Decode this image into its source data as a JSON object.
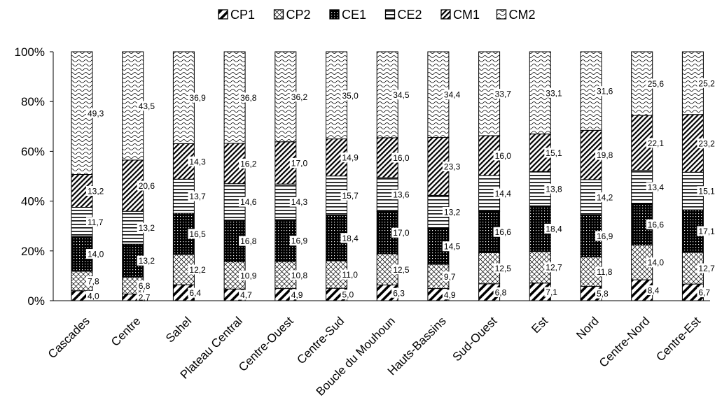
{
  "chart_data": {
    "type": "bar",
    "stacked": true,
    "percent_stacked": true,
    "categories": [
      "Cascades",
      "Centre",
      "Sahel",
      "Plateau Central",
      "Centre-Ouest",
      "Centre-Sud",
      "Boucle du Mouhoun",
      "Hauts-Bassins",
      "Sud-Ouest",
      "Est",
      "Nord",
      "Centre-Nord",
      "Centre-Est"
    ],
    "series": [
      {
        "name": "CP1",
        "pattern": "diagonal-wide",
        "values": [
          4.0,
          2.7,
          6.4,
          4.7,
          4.9,
          5.0,
          6.3,
          4.9,
          6.8,
          7.1,
          5.8,
          8.4,
          6.7
        ],
        "labels": [
          "4,0",
          "2,7",
          "6,4",
          "4,7",
          "4,9",
          "5,0",
          "6,3",
          "4,9",
          "6,8",
          "7,1",
          "5,8",
          "8,4",
          "6,7"
        ]
      },
      {
        "name": "CP2",
        "pattern": "crosshatch",
        "values": [
          7.8,
          6.8,
          12.2,
          10.9,
          10.8,
          11.0,
          12.5,
          9.7,
          12.5,
          12.7,
          11.8,
          14.0,
          12.7
        ],
        "labels": [
          "7,8",
          "6,8",
          "12,2",
          "10,9",
          "10,8",
          "11,0",
          "12,5",
          "9,7",
          "12,5",
          "12,7",
          "11,8",
          "14,0",
          "12,7"
        ]
      },
      {
        "name": "CE1",
        "pattern": "dots-dark",
        "values": [
          14.0,
          13.2,
          16.5,
          16.8,
          16.9,
          18.4,
          17.0,
          14.5,
          16.6,
          18.4,
          16.9,
          16.6,
          17.1
        ],
        "labels": [
          "14,0",
          "13,2",
          "16,5",
          "16,8",
          "16,9",
          "18,4",
          "17,0",
          "14,5",
          "16,6",
          "18,4",
          "16,9",
          "16,6",
          "17,1"
        ]
      },
      {
        "name": "CE2",
        "pattern": "horizontal-lines",
        "values": [
          11.7,
          13.2,
          13.7,
          14.6,
          14.3,
          15.7,
          13.6,
          13.2,
          14.4,
          13.8,
          14.2,
          13.4,
          15.1
        ],
        "labels": [
          "11,7",
          "13,2",
          "13,7",
          "14,6",
          "14,3",
          "15,7",
          "13,6",
          "13,2",
          "14,4",
          "13,8",
          "14,2",
          "13,4",
          "15,1"
        ]
      },
      {
        "name": "CM1",
        "pattern": "diagonal-dense",
        "values": [
          13.2,
          20.6,
          14.3,
          16.2,
          17.0,
          14.9,
          16.0,
          23.3,
          16.0,
          15.1,
          19.8,
          22.1,
          23.2
        ],
        "labels": [
          "13,2",
          "20,6",
          "14,3",
          "16,2",
          "17,0",
          "14,9",
          "16,0",
          "23,3",
          "16,0",
          "15,1",
          "19,8",
          "22,1",
          "23,2"
        ]
      },
      {
        "name": "CM2",
        "pattern": "wave",
        "values": [
          49.3,
          43.5,
          36.9,
          36.8,
          36.2,
          35.0,
          34.5,
          34.4,
          33.7,
          33.1,
          31.6,
          25.6,
          25.2
        ],
        "labels": [
          "49,3",
          "43,5",
          "36,9",
          "36,8",
          "36,2",
          "35,0",
          "34,5",
          "34,4",
          "33,7",
          "33,1",
          "31,6",
          "25,6",
          "25,2"
        ]
      }
    ],
    "yticks": [
      "0%",
      "20%",
      "40%",
      "60%",
      "80%",
      "100%"
    ],
    "ylim": [
      0,
      100
    ],
    "grid": false,
    "legend_position": "top"
  }
}
